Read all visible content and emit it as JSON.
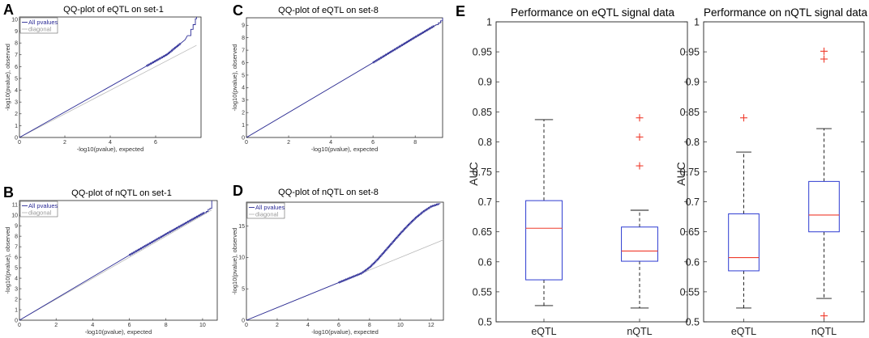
{
  "colors": {
    "qq_line": "#2b2b96",
    "diagonal": "#b9b9b9",
    "box": "#2d3bd1",
    "median": "#ef3b2c",
    "outlier": "#ef3b2c",
    "whisker": "#111111"
  },
  "chart_data": [
    {
      "id": "A",
      "panel_label": "A",
      "type": "line",
      "title": "QQ-plot of eQTL on set-1",
      "xlabel": "-log10(pvalue), expected",
      "ylabel": "-log10(pvalue), observed",
      "xlim": [
        0,
        8
      ],
      "ylim": [
        0,
        10.2
      ],
      "xticks": [
        0,
        2,
        4,
        6
      ],
      "yticks": [
        0,
        1,
        2,
        3,
        4,
        5,
        6,
        7,
        8,
        9,
        10
      ],
      "legend": [
        "All pvalues",
        "diagonal"
      ],
      "series": [
        {
          "name": "All pvalues",
          "x": [
            0,
            5.6,
            6.5,
            7.3,
            7.4
          ],
          "y": [
            0,
            6.05,
            7.02,
            8.28,
            8.62
          ]
        },
        {
          "name": "diagonal",
          "x": [
            0,
            7.8
          ],
          "y": [
            0,
            7.8
          ]
        }
      ],
      "dense_range": [
        5.6,
        7.1
      ],
      "steps_x": [
        7.45,
        7.55,
        7.65,
        7.75,
        7.8
      ],
      "steps_y": [
        8.62,
        9.15,
        9.55,
        10.05,
        10.2
      ]
    },
    {
      "id": "B",
      "panel_label": "B",
      "type": "line",
      "title": "QQ-plot of nQTL on set-1",
      "xlabel": "-log10(pvalue), expected",
      "ylabel": "-log10(pvalue), observed",
      "xlim": [
        0,
        10.8
      ],
      "ylim": [
        0,
        11.4
      ],
      "xticks": [
        0,
        2,
        4,
        6,
        8,
        10
      ],
      "yticks": [
        0,
        1,
        2,
        3,
        4,
        5,
        6,
        7,
        8,
        9,
        10,
        11
      ],
      "legend": [
        "All pvalues",
        "diagonal"
      ],
      "series": [
        {
          "name": "All pvalues",
          "x": [
            0,
            6.0,
            8.0,
            10.1
          ],
          "y": [
            0,
            6.2,
            8.2,
            10.25
          ]
        },
        {
          "name": "diagonal",
          "x": [
            0,
            10.5
          ],
          "y": [
            0,
            10.5
          ]
        }
      ],
      "dense_range": [
        6.0,
        10.1
      ],
      "steps_x": [
        10.2,
        10.3,
        10.4,
        10.5
      ],
      "steps_y": [
        10.35,
        10.55,
        10.65,
        11.4
      ]
    },
    {
      "id": "C",
      "panel_label": "C",
      "type": "line",
      "title": "QQ-plot of eQTL on set-8",
      "xlabel": "-log10(pvalue), expected",
      "ylabel": "-log10(pvalue), observed",
      "xlim": [
        0,
        9.3
      ],
      "ylim": [
        0,
        9.6
      ],
      "xticks": [
        0,
        2,
        4,
        6,
        8
      ],
      "yticks": [
        0,
        1,
        2,
        3,
        4,
        5,
        6,
        7,
        8,
        9
      ],
      "legend": [
        "All pvalues",
        "diagonal"
      ],
      "series": [
        {
          "name": "All pvalues",
          "x": [
            0,
            6.0,
            8.0,
            9.0
          ],
          "y": [
            0,
            6.0,
            8.05,
            9.05
          ]
        },
        {
          "name": "diagonal",
          "x": [
            0,
            9.3
          ],
          "y": [
            0,
            9.3
          ]
        }
      ],
      "dense_range": [
        6.0,
        8.9
      ],
      "steps_x": [
        9.1,
        9.2,
        9.3
      ],
      "steps_y": [
        9.2,
        9.35,
        9.6
      ]
    },
    {
      "id": "D",
      "panel_label": "D",
      "type": "line",
      "title": "QQ-plot of nQTL on set-8",
      "xlabel": "-log10(pvalue), expected",
      "ylabel": "-log10(pvalue), observed",
      "xlim": [
        0,
        12.8
      ],
      "ylim": [
        0,
        18.8
      ],
      "xticks": [
        0,
        2,
        4,
        6,
        8,
        10,
        12
      ],
      "yticks": [
        0,
        5,
        10,
        15
      ],
      "legend": [
        "All pvalues",
        "diagonal"
      ],
      "series": [
        {
          "name": "All pvalues",
          "x": [
            0,
            6.0,
            7.0,
            7.5,
            8.0,
            8.5,
            9.0,
            9.5,
            10.0,
            10.5,
            11.0,
            11.5,
            12.0,
            12.6
          ],
          "y": [
            0,
            6.0,
            7.0,
            7.5,
            8.4,
            9.6,
            11.0,
            12.4,
            13.8,
            15.1,
            16.3,
            17.3,
            18.1,
            18.6
          ]
        },
        {
          "name": "diagonal",
          "x": [
            0,
            12.8
          ],
          "y": [
            0,
            12.8
          ]
        }
      ],
      "dense_range": [
        6.0,
        12.5
      ],
      "steps_x": [],
      "steps_y": []
    },
    {
      "id": "E1",
      "panel_label": "E",
      "type": "box",
      "title": "Performance on eQTL signal data",
      "xlabel": "",
      "ylabel": "AUC",
      "ylim": [
        0.5,
        1.0
      ],
      "yticks": [
        0.5,
        0.55,
        0.6,
        0.65,
        0.7,
        0.75,
        0.8,
        0.85,
        0.9,
        0.95,
        1
      ],
      "categories": [
        "eQTL",
        "nQTL"
      ],
      "boxes": [
        {
          "name": "eQTL",
          "whisker_low": 0.527,
          "q1": 0.57,
          "median": 0.656,
          "q3": 0.702,
          "whisker_high": 0.837,
          "outliers": []
        },
        {
          "name": "nQTL",
          "whisker_low": 0.523,
          "q1": 0.601,
          "median": 0.618,
          "q3": 0.658,
          "whisker_high": 0.686,
          "outliers": [
            0.76,
            0.808,
            0.84
          ]
        }
      ]
    },
    {
      "id": "E2",
      "panel_label": "",
      "type": "box",
      "title": "Performance on nQTL signal data",
      "xlabel": "",
      "ylabel": "AUC",
      "ylim": [
        0.5,
        1.0
      ],
      "yticks": [
        0.5,
        0.55,
        0.6,
        0.65,
        0.7,
        0.75,
        0.8,
        0.85,
        0.9,
        0.95,
        1
      ],
      "categories": [
        "eQTL",
        "nQTL"
      ],
      "boxes": [
        {
          "name": "eQTL",
          "whisker_low": 0.523,
          "q1": 0.585,
          "median": 0.607,
          "q3": 0.68,
          "whisker_high": 0.783,
          "outliers": [
            0.84
          ]
        },
        {
          "name": "nQTL",
          "whisker_low": 0.539,
          "q1": 0.65,
          "median": 0.678,
          "q3": 0.734,
          "whisker_high": 0.822,
          "outliers": [
            0.51,
            0.938,
            0.951
          ]
        }
      ]
    }
  ]
}
